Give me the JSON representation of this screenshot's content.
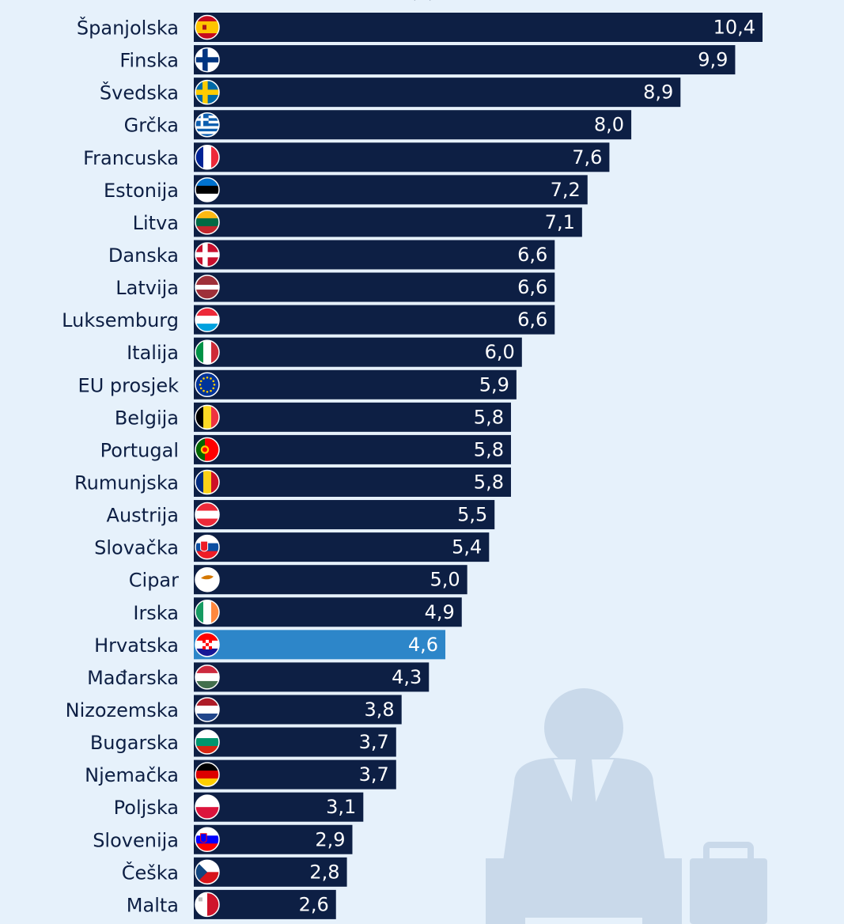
{
  "chart_data": {
    "type": "bar",
    "orientation": "horizontal",
    "title_fragment": "(%)",
    "categories": [
      "Španjolska",
      "Finska",
      "Švedska",
      "Grčka",
      "Francuska",
      "Estonija",
      "Litva",
      "Danska",
      "Latvija",
      "Luksemburg",
      "Italija",
      "EU prosjek",
      "Belgija",
      "Portugal",
      "Rumunjska",
      "Austrija",
      "Slovačka",
      "Cipar",
      "Irska",
      "Hrvatska",
      "Mađarska",
      "Nizozemska",
      "Bugarska",
      "Njemačka",
      "Poljska",
      "Slovenija",
      "Češka",
      "Malta"
    ],
    "values": [
      10.4,
      9.9,
      8.9,
      8.0,
      7.6,
      7.2,
      7.1,
      6.6,
      6.6,
      6.6,
      6.0,
      5.9,
      5.8,
      5.8,
      5.8,
      5.5,
      5.4,
      5.0,
      4.9,
      4.6,
      4.3,
      3.8,
      3.7,
      3.7,
      3.1,
      2.9,
      2.8,
      2.6
    ],
    "value_labels": [
      "10,4",
      "9,9",
      "8,9",
      "8,0",
      "7,6",
      "7,2",
      "7,1",
      "6,6",
      "6,6",
      "6,6",
      "6,0",
      "5,9",
      "5,8",
      "5,8",
      "5,8",
      "5,5",
      "5,4",
      "5,0",
      "4,9",
      "4,6",
      "4,3",
      "3,8",
      "3,7",
      "3,7",
      "3,1",
      "2,9",
      "2,8",
      "2,6"
    ],
    "flags": [
      "flag-es",
      "flag-fi",
      "flag-se",
      "flag-gr",
      "flag-fr",
      "flag-ee",
      "flag-lt",
      "flag-dk",
      "flag-lv",
      "flag-lu",
      "flag-it",
      "flag-eu",
      "flag-be",
      "flag-pt",
      "flag-ro",
      "flag-at",
      "flag-sk",
      "flag-cy",
      "flag-ie",
      "flag-hr",
      "flag-hu",
      "flag-nl",
      "flag-bg",
      "flag-de",
      "flag-pl",
      "flag-si",
      "flag-cz",
      "flag-mt"
    ],
    "highlight": "Hrvatska",
    "xlim": [
      0,
      10.4
    ],
    "colors": {
      "bar": "#0d1f44",
      "highlight": "#2d86c9",
      "label": "#0d1f44",
      "value": "#ffffff",
      "background": "#e6f1fb",
      "illustration": "#c9d9ea"
    }
  }
}
